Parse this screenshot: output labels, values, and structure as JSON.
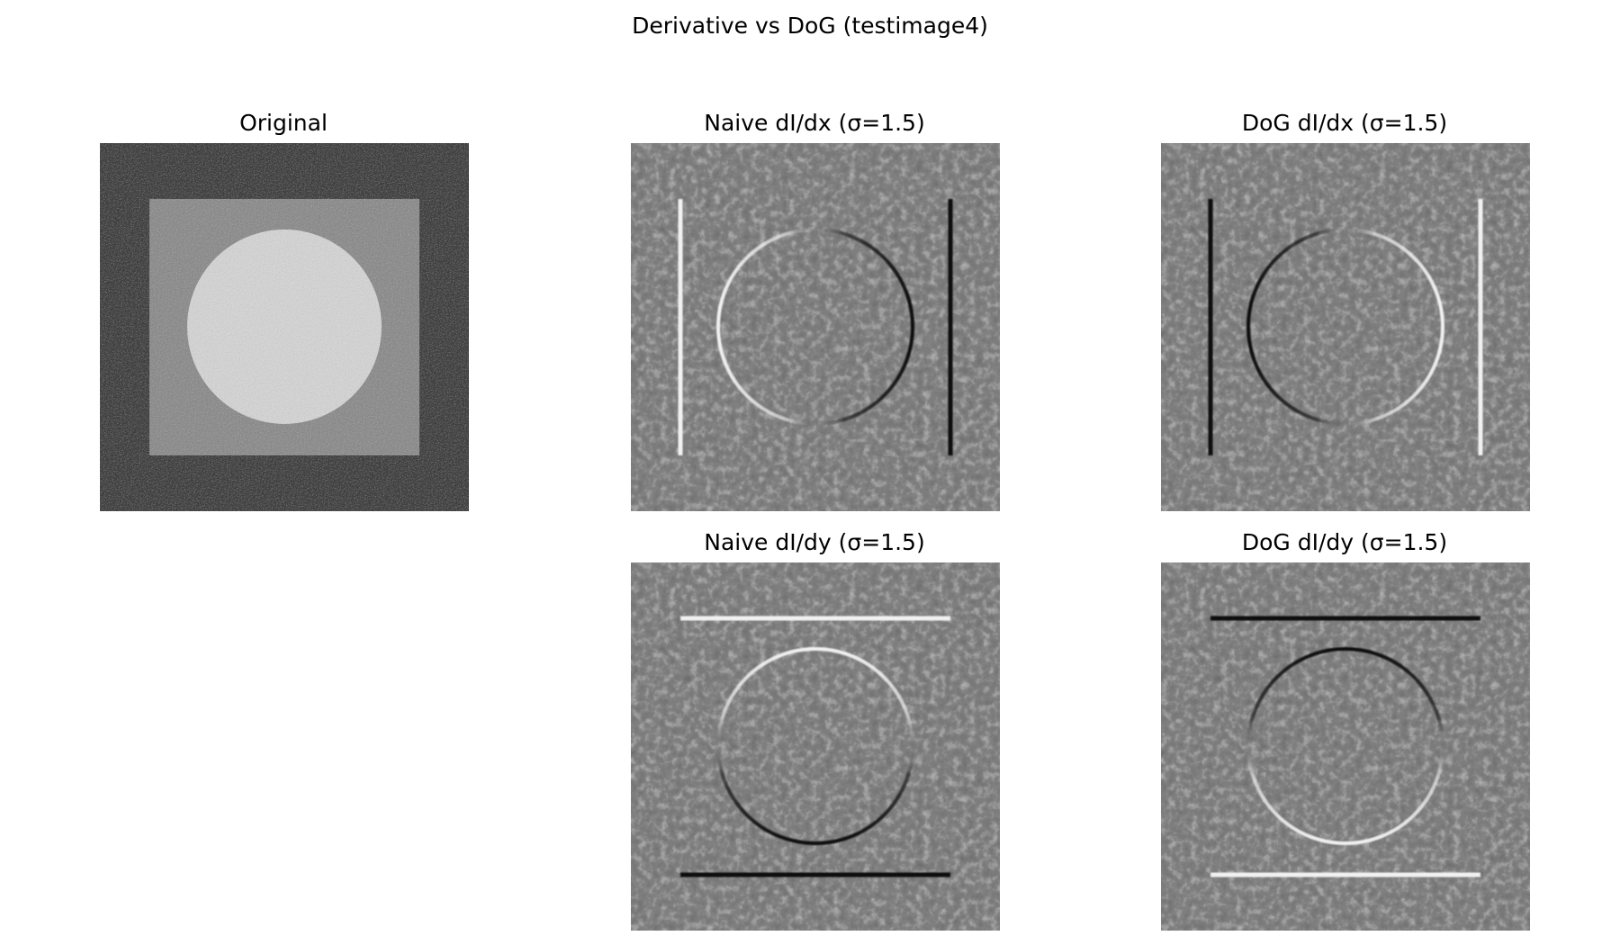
{
  "figure": {
    "title": "Derivative vs DoG (testimage4)"
  },
  "panels": {
    "original": {
      "title": "Original"
    },
    "naive_dx": {
      "title": "Naive dI/dx (σ=1.5)"
    },
    "dog_dx": {
      "title": "DoG dI/dx (σ=1.5)"
    },
    "naive_dy": {
      "title": "Naive dI/dy (σ=1.5)"
    },
    "dog_dy": {
      "title": "DoG dI/dy (σ=1.5)"
    }
  },
  "colors": {
    "background": "#ffffff",
    "original_outer": "#404040",
    "original_square": "#8c8c8c",
    "original_circle": "#d2d2d2",
    "derivative_gray": "#808080",
    "edge_positive": "#f2f2f2",
    "edge_negative": "#101010"
  }
}
